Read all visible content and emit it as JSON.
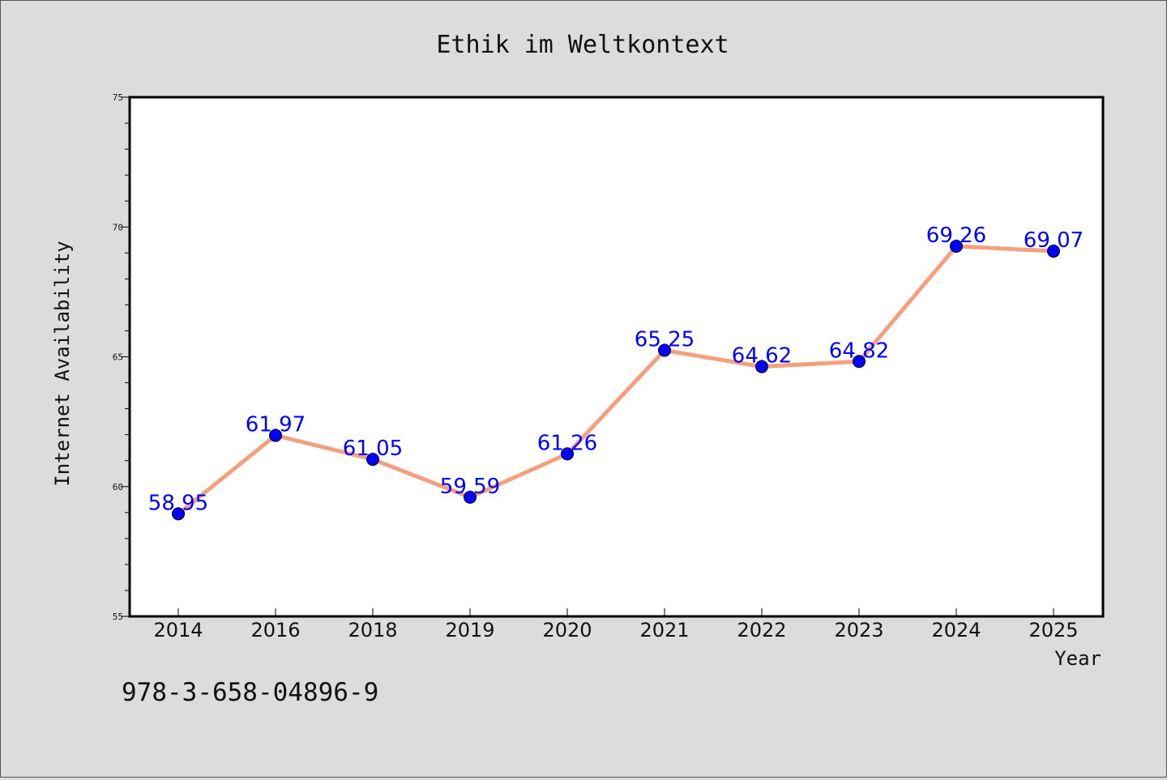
{
  "chart_data": {
    "type": "line",
    "title": "Ethik im Weltkontext",
    "xlabel": "Year",
    "ylabel": "Internet Availability",
    "categories": [
      "2014",
      "2016",
      "2018",
      "2019",
      "2020",
      "2021",
      "2022",
      "2023",
      "2024",
      "2025"
    ],
    "series": [
      {
        "values": [
          58.95,
          61.97,
          61.05,
          59.59,
          61.26,
          65.25,
          64.62,
          64.82,
          69.26,
          69.07
        ],
        "labels": [
          "58.95",
          "61.97",
          "61.05",
          "59.59",
          "61.26",
          "65.25",
          "64.62",
          "64.82",
          "69.26",
          "69.07"
        ],
        "line_color": "#f4a07e",
        "marker_color": "#0000ff",
        "label_color": "#0000ff"
      }
    ],
    "ylim": [
      55,
      75
    ],
    "yticks": [
      "55",
      "60",
      "65",
      "70",
      "75"
    ],
    "grid": false,
    "legend": "none"
  },
  "footnote": "978-3-658-04896-9"
}
